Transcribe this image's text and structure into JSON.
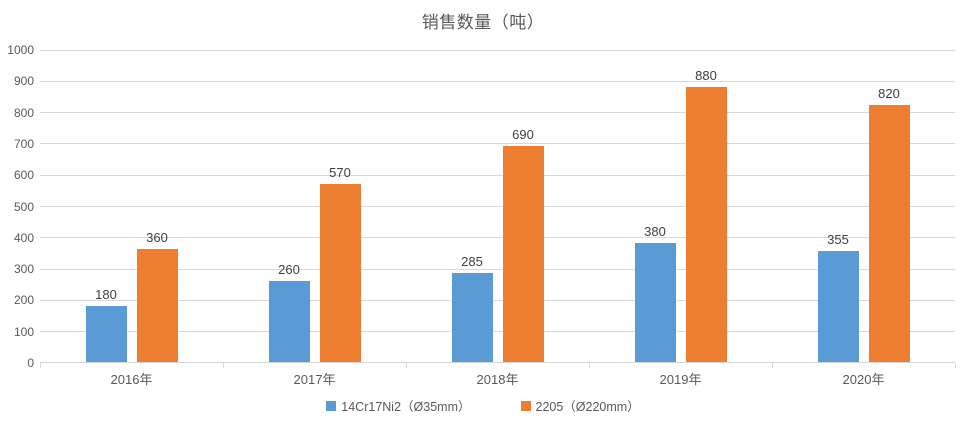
{
  "title": "销售数量（吨）",
  "chart_data": {
    "type": "bar",
    "title": "销售数量（吨）",
    "categories": [
      "2016年",
      "2017年",
      "2018年",
      "2019年",
      "2020年"
    ],
    "series": [
      {
        "name": "14Cr17Ni2（Ø35mm）",
        "color": "#5B9BD5",
        "values": [
          180,
          260,
          285,
          380,
          355
        ]
      },
      {
        "name": "2205（Ø220mm）",
        "color": "#ED7D31",
        "values": [
          360,
          570,
          690,
          880,
          820
        ]
      }
    ],
    "xlabel": "",
    "ylabel": "",
    "ylim": [
      0,
      1000
    ],
    "yticks": [
      0,
      100,
      200,
      300,
      400,
      500,
      600,
      700,
      800,
      900,
      1000
    ],
    "grid": true,
    "legend_position": "bottom",
    "data_labels": true,
    "colors": {
      "gridline": "#D9D9D9",
      "axis": "#D6D6D6",
      "axis_text": "#595959",
      "data_label_text": "#404040",
      "title_text": "#595959",
      "background": "#FFFFFF"
    }
  }
}
